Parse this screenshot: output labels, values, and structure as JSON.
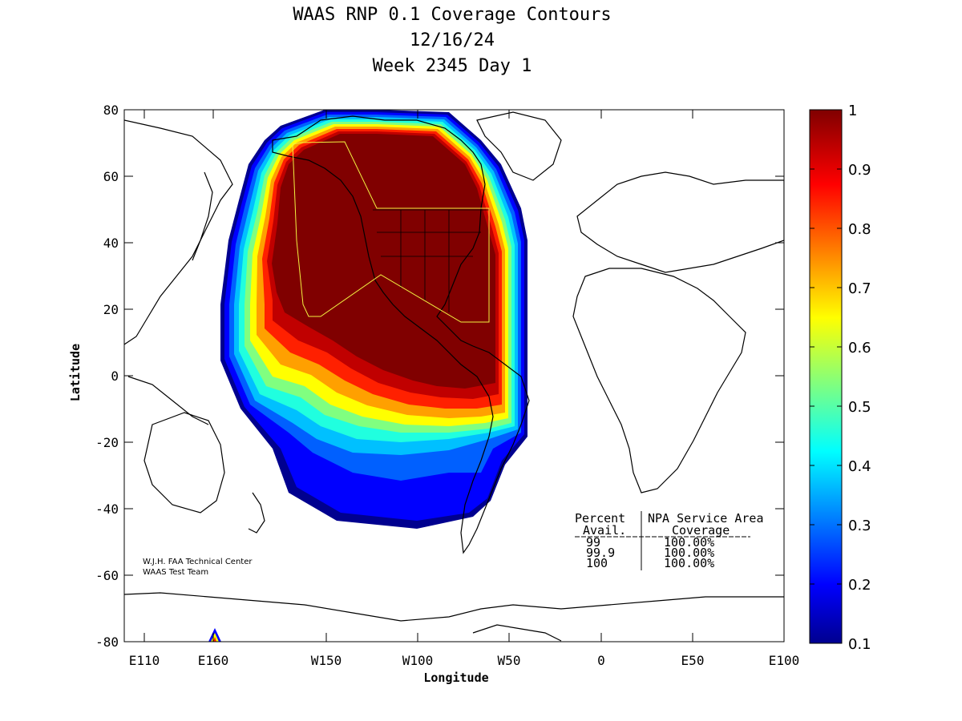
{
  "chart_data": {
    "type": "heatmap",
    "title_lines": [
      "WAAS RNP 0.1 Coverage Contours",
      "12/16/24",
      "Week 2345 Day 1"
    ],
    "xlabel": "Longitude",
    "ylabel": "Latitude",
    "x_ticks": [
      "E110",
      "E160",
      "W150",
      "W100",
      "W50",
      "0",
      "E50",
      "E100"
    ],
    "y_ticks": [
      "80",
      "60",
      "40",
      "20",
      "0",
      "-20",
      "-40",
      "-60",
      "-80"
    ],
    "ylim": [
      -80,
      80
    ],
    "colorbar": {
      "min": 0.1,
      "max": 1,
      "ticks": [
        "1",
        "0.9",
        "0.8",
        "0.7",
        "0.6",
        "0.5",
        "0.4",
        "0.3",
        "0.2",
        "0.1"
      ]
    },
    "credit": [
      "W.J.H. FAA Technical Center",
      "WAAS Test Team"
    ],
    "coverage_table": {
      "header1": [
        "Percent",
        "NPA Service Area"
      ],
      "header2": [
        "Avail.",
        "Coverage"
      ],
      "rows": [
        {
          "avail": "99",
          "coverage": "100.00%"
        },
        {
          "avail": "99.9",
          "coverage": "100.00%"
        },
        {
          "avail": "100",
          "coverage": "100.00%"
        }
      ]
    },
    "coverage_contours": [
      {
        "level": 0.1,
        "color": "#00008f"
      },
      {
        "level": 0.2,
        "color": "#0000ff"
      },
      {
        "level": 0.3,
        "color": "#0060ff"
      },
      {
        "level": 0.4,
        "color": "#00c0ff"
      },
      {
        "level": 0.5,
        "color": "#20ffdf"
      },
      {
        "level": 0.6,
        "color": "#80ff80"
      },
      {
        "level": 0.7,
        "color": "#ffff00"
      },
      {
        "level": 0.8,
        "color": "#ffa000"
      },
      {
        "level": 0.9,
        "color": "#ff2000"
      },
      {
        "level": 0.95,
        "color": "#c00000"
      },
      {
        "level": 1.0,
        "color": "#800000"
      }
    ]
  }
}
